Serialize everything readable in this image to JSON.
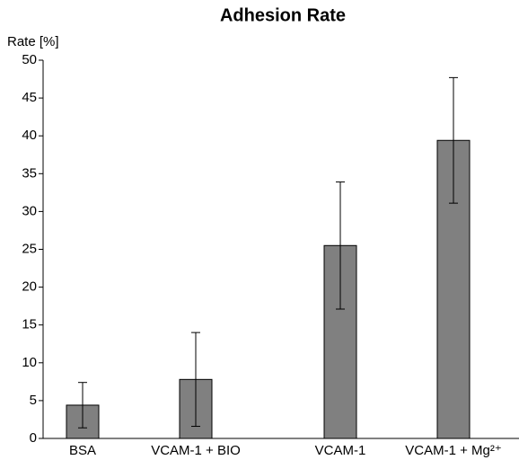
{
  "chart_data": {
    "type": "bar",
    "title": "Adhesion Rate",
    "y_label": "Rate [%]",
    "categories": [
      "BSA",
      "VCAM-1 + BIO",
      "VCAM-1",
      "VCAM-1 + Mg²⁺"
    ],
    "values": [
      4.4,
      7.8,
      25.5,
      39.4
    ],
    "errors": [
      3.0,
      6.2,
      8.4,
      8.3
    ],
    "color": "#808080",
    "ylim": [
      0,
      50
    ],
    "yticks": [
      0,
      5,
      10,
      15,
      20,
      25,
      30,
      35,
      40,
      45,
      50
    ],
    "grid": false
  }
}
